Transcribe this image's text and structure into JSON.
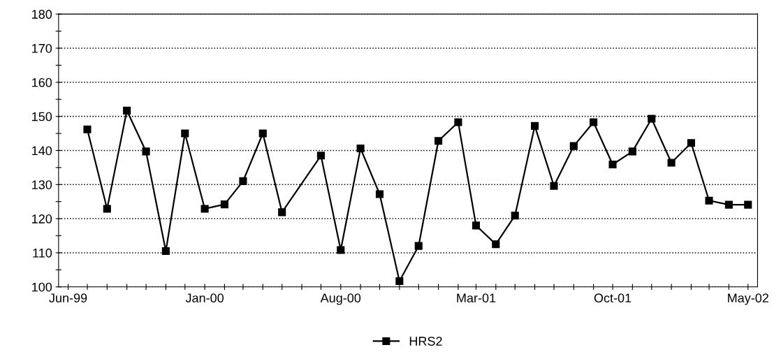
{
  "chart_data": {
    "type": "line",
    "xlim": [
      "1999-05-17",
      "2002-05-16"
    ],
    "ylim": [
      100,
      180
    ],
    "yticks": [
      100,
      {
        "value": 105,
        "label": null
      },
      110,
      {
        "value": 115,
        "label": null
      },
      120,
      {
        "value": 125,
        "label": null
      },
      130,
      {
        "value": 135,
        "label": null
      },
      140,
      {
        "value": 145,
        "label": null
      },
      150,
      {
        "value": 155,
        "label": null
      },
      160,
      {
        "value": 165,
        "label": null
      },
      170,
      {
        "value": 175,
        "label": null
      },
      180
    ],
    "xticks": [
      {
        "value": "1999-06",
        "label": "Jun-99"
      },
      {
        "value": "1999-07",
        "label": null
      },
      {
        "value": "1999-08",
        "label": null
      },
      {
        "value": "1999-09",
        "label": null
      },
      {
        "value": "1999-10",
        "label": null
      },
      {
        "value": "1999-11",
        "label": null
      },
      {
        "value": "1999-12",
        "label": null
      },
      {
        "value": "2000-01",
        "label": "Jan-00"
      },
      {
        "value": "2000-02",
        "label": null
      },
      {
        "value": "2000-03",
        "label": null
      },
      {
        "value": "2000-04",
        "label": null
      },
      {
        "value": "2000-05",
        "label": null
      },
      {
        "value": "2000-06",
        "label": null
      },
      {
        "value": "2000-07",
        "label": null
      },
      {
        "value": "2000-08",
        "label": "Aug-00"
      },
      {
        "value": "2000-09",
        "label": null
      },
      {
        "value": "2000-10",
        "label": null
      },
      {
        "value": "2000-11",
        "label": null
      },
      {
        "value": "2000-12",
        "label": null
      },
      {
        "value": "2001-01",
        "label": null
      },
      {
        "value": "2001-02",
        "label": null
      },
      {
        "value": "2001-03",
        "label": "Mar-01"
      },
      {
        "value": "2001-04",
        "label": null
      },
      {
        "value": "2001-05",
        "label": null
      },
      {
        "value": "2001-06",
        "label": null
      },
      {
        "value": "2001-07",
        "label": null
      },
      {
        "value": "2001-08",
        "label": null
      },
      {
        "value": "2001-09",
        "label": null
      },
      {
        "value": "2001-10",
        "label": "Oct-01"
      },
      {
        "value": "2001-11",
        "label": null
      },
      {
        "value": "2001-12",
        "label": null
      },
      {
        "value": "2002-01",
        "label": null
      },
      {
        "value": "2002-02",
        "label": null
      },
      {
        "value": "2002-03",
        "label": null
      },
      {
        "value": "2002-04",
        "label": null
      },
      {
        "value": "2002-05",
        "label": "May-02"
      }
    ],
    "grid": "y",
    "legend": "bottom",
    "marker": "square",
    "line_style": "solid",
    "series": [
      {
        "name": "HRS2",
        "color": "#000000",
        "x": [
          "1999-07",
          "1999-08",
          "1999-09",
          "1999-10",
          "1999-11",
          "1999-12",
          "2000-01",
          "2000-02",
          "2000-03",
          "2000-04",
          "2000-05",
          "2000-07",
          "2000-08",
          "2000-09",
          "2000-10",
          "2000-11",
          "2000-12",
          "2001-01",
          "2001-02",
          "2001-03",
          "2001-04",
          "2001-05",
          "2001-06",
          "2001-07",
          "2001-08",
          "2001-09",
          "2001-10",
          "2001-11",
          "2001-12",
          "2002-01",
          "2002-02",
          "2002-03",
          "2002-04",
          "2002-05"
        ],
        "values": [
          146.2,
          122.9,
          151.7,
          139.7,
          110.5,
          145.0,
          122.9,
          124.2,
          131.0,
          145.0,
          121.9,
          138.5,
          110.8,
          140.6,
          127.2,
          101.7,
          112.0,
          142.8,
          148.3,
          118.0,
          112.5,
          120.9,
          147.2,
          129.6,
          141.3,
          148.3,
          135.9,
          139.7,
          149.3,
          136.4,
          142.2,
          125.3,
          124.1,
          124.1
        ]
      }
    ]
  }
}
